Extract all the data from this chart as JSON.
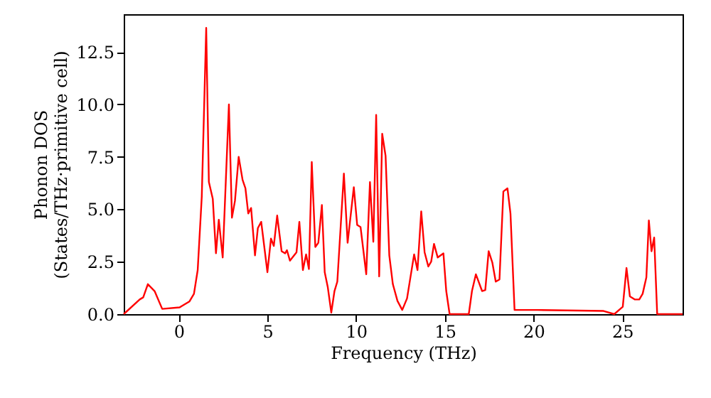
{
  "chart_data": {
    "type": "line",
    "xlabel": "Frequency (THz)",
    "ylabel": "Phonon DOS\n(States/THz·primitive cell)",
    "x": [
      -3.1,
      -2.2,
      -2.0,
      -1.74,
      -1.36,
      -0.93,
      0.05,
      0.6,
      0.86,
      1.07,
      1.3,
      1.55,
      1.7,
      1.92,
      2.1,
      2.26,
      2.48,
      2.83,
      3.0,
      3.17,
      3.38,
      3.6,
      3.76,
      3.92,
      4.08,
      4.3,
      4.46,
      4.65,
      5.0,
      5.2,
      5.36,
      5.55,
      5.8,
      6.0,
      6.1,
      6.27,
      6.64,
      6.8,
      7.0,
      7.18,
      7.34,
      7.5,
      7.7,
      7.87,
      8.07,
      8.23,
      8.4,
      8.6,
      8.78,
      8.94,
      9.31,
      9.52,
      9.87,
      10.06,
      10.25,
      10.57,
      10.78,
      10.97,
      11.13,
      11.3,
      11.47,
      11.66,
      11.87,
      12.07,
      12.33,
      12.6,
      12.87,
      13.27,
      13.46,
      13.67,
      13.86,
      14.07,
      14.23,
      14.39,
      14.6,
      14.92,
      15.08,
      15.27,
      16.35,
      16.53,
      16.75,
      17.1,
      17.28,
      17.47,
      17.68,
      17.87,
      18.08,
      18.3,
      18.53,
      18.7,
      18.93,
      20.2,
      23.95,
      24.55,
      25.03,
      25.24,
      25.43,
      25.7,
      25.96,
      26.15,
      26.36,
      26.5,
      26.65,
      26.8,
      26.97,
      28.4
    ],
    "series": [
      {
        "color": "#ff0000",
        "values": [
          0,
          0.7,
          0.8,
          1.43,
          1.1,
          0.25,
          0.32,
          0.6,
          0.97,
          2.1,
          5.6,
          13.65,
          6.3,
          5.5,
          2.9,
          4.5,
          2.7,
          10.0,
          4.6,
          5.4,
          7.5,
          6.4,
          6.0,
          4.8,
          5.06,
          2.8,
          4.1,
          4.4,
          2.0,
          3.6,
          3.25,
          4.7,
          3.0,
          2.9,
          3.05,
          2.55,
          2.95,
          4.4,
          2.1,
          2.85,
          2.15,
          7.25,
          3.2,
          3.4,
          5.2,
          2.0,
          1.3,
          0.07,
          1.1,
          1.55,
          6.7,
          3.4,
          6.05,
          4.25,
          4.15,
          1.9,
          6.3,
          3.45,
          9.5,
          1.8,
          8.6,
          7.55,
          2.8,
          1.43,
          0.63,
          0.2,
          0.75,
          2.85,
          2.1,
          4.9,
          2.95,
          2.27,
          2.5,
          3.35,
          2.7,
          2.9,
          1.1,
          0,
          0,
          1.1,
          1.9,
          1.1,
          1.15,
          3.0,
          2.45,
          1.55,
          1.65,
          5.85,
          6.0,
          4.8,
          0.2,
          0.2,
          0.15,
          0,
          0.35,
          2.2,
          0.85,
          0.7,
          0.7,
          0.97,
          1.75,
          4.47,
          3.0,
          3.65,
          0,
          0
        ]
      }
    ],
    "xlim": [
      -3.1,
      28.4
    ],
    "xticks": [
      0,
      5,
      10,
      15,
      20,
      25
    ],
    "ylim": [
      0,
      14.3
    ],
    "yticks": [
      {
        "value": 0,
        "label": "0.0"
      },
      {
        "value": 2.5,
        "label": "2.5"
      },
      {
        "value": 5,
        "label": "5.0"
      },
      {
        "value": 7.5,
        "label": "7.5"
      },
      {
        "value": 10,
        "label": "10.0"
      },
      {
        "value": 12.5,
        "label": "12.5"
      }
    ],
    "grid": false,
    "line_style": "solid",
    "marker": "none"
  }
}
